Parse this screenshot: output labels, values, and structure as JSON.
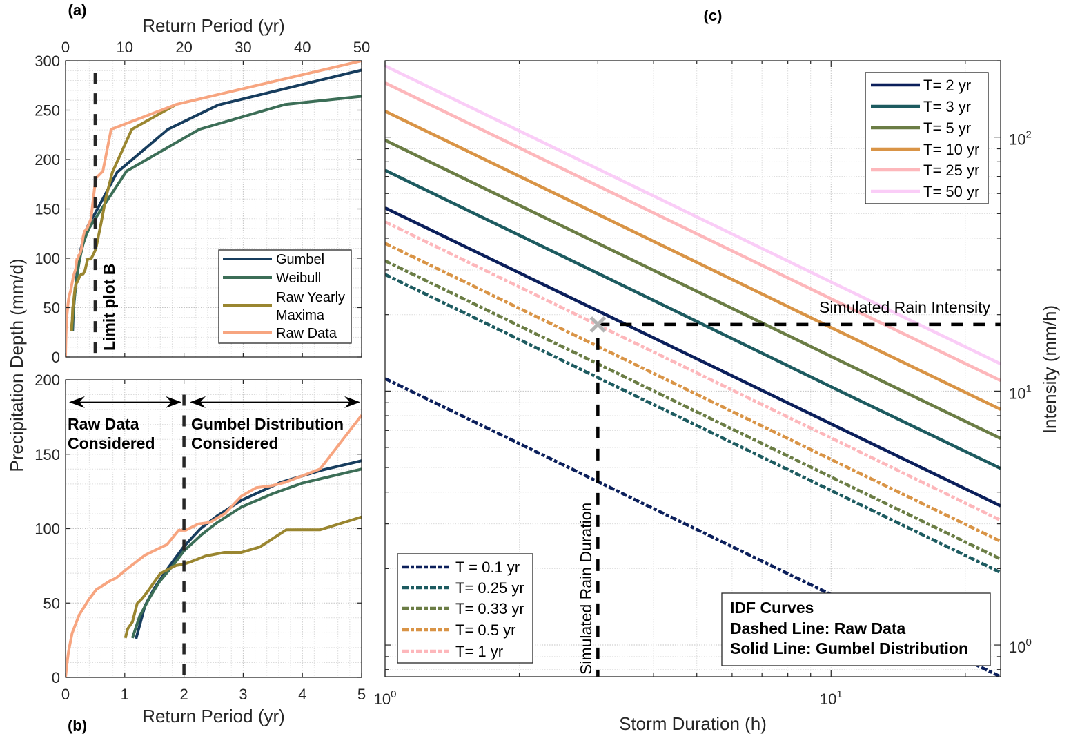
{
  "figure": {
    "panels": [
      "(a)",
      "(b)",
      "(c)"
    ]
  },
  "chart_data": [
    {
      "panel_label": "(a)",
      "type": "line",
      "title": "",
      "xlabel": "Return Period (yr)",
      "ylabel": "Precipitation Depth (mm/d)",
      "x_axis_location": "top",
      "y_axis_location": "left",
      "xscale": "linear",
      "yscale": "linear",
      "xlim": [
        0,
        50
      ],
      "ylim": [
        0,
        300
      ],
      "xticks": [
        0,
        10,
        20,
        30,
        40,
        50
      ],
      "xtick_labels": [
        "0",
        "10",
        "20",
        "30",
        "40",
        "50"
      ],
      "yticks": [
        0,
        50,
        100,
        150,
        200,
        250,
        300
      ],
      "ytick_labels": [
        "0",
        "50",
        "100",
        "150",
        "200",
        "250",
        "300"
      ],
      "minor_step": {
        "x": 2,
        "y": 10
      },
      "grid": {
        "major": true,
        "minor": true
      },
      "legend": {
        "location": "east",
        "entries": [
          [
            "Gumbel"
          ],
          [
            "Weibull"
          ],
          [
            "Raw Yearly",
            "Maxima"
          ],
          [
            "Raw Data"
          ]
        ]
      },
      "series": [
        {
          "name": "Gumbel",
          "color": "#173d5e",
          "style": "solid",
          "x": [
            1.19,
            1.34,
            1.5,
            1.74,
            2.0,
            2.28,
            2.56,
            2.97,
            3.63,
            4.3,
            5.0,
            8.7,
            17.3,
            25.8,
            50
          ],
          "y": [
            26,
            48,
            60,
            74,
            88,
            100,
            108.5,
            119,
            131,
            139,
            145.6,
            187,
            230.6,
            255.3,
            290.6
          ]
        },
        {
          "name": "Weibull",
          "color": "#3c6e57",
          "style": "solid",
          "x": [
            1.13,
            1.25,
            1.42,
            1.58,
            1.83,
            2.0,
            2.3,
            2.56,
            2.97,
            3.5,
            4.0,
            5.0,
            10.3,
            22.6,
            37.1,
            50
          ],
          "y": [
            26.5,
            41,
            53.5,
            64,
            76,
            85,
            96,
            104,
            114.5,
            123.5,
            130.6,
            140,
            188.2,
            230.6,
            255.8,
            264
          ]
        },
        {
          "name": "Raw Yearly Maxima",
          "color": "#9a8630",
          "style": "solid",
          "x": [
            1.01,
            1.05,
            1.13,
            1.21,
            1.29,
            1.38,
            1.46,
            1.6,
            1.74,
            1.87,
            1.99,
            2.11,
            2.36,
            2.68,
            2.97,
            3.28,
            3.73,
            4.3,
            5.0,
            5.2,
            6.0,
            6.8,
            7.9,
            11.2,
            18.7
          ],
          "y": [
            26.5,
            32.7,
            37.3,
            49.7,
            52.8,
            57.4,
            62,
            69.8,
            72.8,
            75.3,
            76,
            77.6,
            81.5,
            84,
            84,
            87.6,
            99.2,
            99.2,
            107.8,
            112,
            135.5,
            161,
            187,
            230.6,
            255.8
          ]
        },
        {
          "name": "Raw Data",
          "color": "#f7a580",
          "style": "solid",
          "x": [
            0,
            0.02,
            0.05,
            0.11,
            0.23,
            0.4,
            0.52,
            0.76,
            0.85,
            1.05,
            1.34,
            1.66,
            1.71,
            1.91,
            2.03,
            2.24,
            2.44,
            2.69,
            2.97,
            3.22,
            3.48,
            3.71,
            4.3,
            5.0,
            5.1,
            6.3,
            7.7,
            18.7,
            50
          ],
          "y": [
            0,
            8,
            17.3,
            29.6,
            42,
            52.8,
            59,
            65.1,
            66.7,
            73.3,
            82.1,
            88.3,
            89.1,
            98.9,
            98.9,
            103.1,
            104.2,
            110.1,
            121.8,
            127.5,
            128.8,
            131.1,
            140.1,
            176.2,
            181,
            188.2,
            230.6,
            255.8,
            300
          ]
        }
      ],
      "annotations": {
        "limit_line": {
          "x": 5,
          "y_max": 288,
          "style": "dashed",
          "color": "#262626",
          "label": "Limit plot B"
        }
      }
    },
    {
      "panel_label": "(b)",
      "type": "line",
      "title": "",
      "xlabel": "Return Period (yr)",
      "ylabel": "Precipitation Depth (mm/d)",
      "x_axis_location": "bottom",
      "y_axis_location": "left",
      "xscale": "linear",
      "yscale": "linear",
      "xlim": [
        0,
        5
      ],
      "ylim": [
        0,
        200
      ],
      "xticks": [
        0,
        1,
        2,
        3,
        4,
        5
      ],
      "xtick_labels": [
        "0",
        "1",
        "2",
        "3",
        "4",
        "5"
      ],
      "yticks": [
        0,
        50,
        100,
        150,
        200
      ],
      "ytick_labels": [
        "0",
        "50",
        "100",
        "150",
        "200"
      ],
      "minor_step": {
        "x": 0.2,
        "y": 10
      },
      "grid": {
        "major": true,
        "minor": true
      },
      "series": [
        {
          "name": "Gumbel",
          "color": "#173d5e",
          "style": "solid",
          "x": [
            1.19,
            1.34,
            1.5,
            1.74,
            2.0,
            2.28,
            2.56,
            2.97,
            3.63,
            4.3,
            5.0
          ],
          "y": [
            26,
            48,
            60,
            74,
            88,
            100,
            108.5,
            119,
            131,
            139,
            145.6
          ]
        },
        {
          "name": "Weibull",
          "color": "#3c6e57",
          "style": "solid",
          "x": [
            1.13,
            1.25,
            1.42,
            1.58,
            1.83,
            2.0,
            2.3,
            2.56,
            2.97,
            3.5,
            4.0,
            5.0
          ],
          "y": [
            26.5,
            41,
            53.5,
            64,
            76,
            85,
            96,
            104,
            114.5,
            123.5,
            130.6,
            140
          ]
        },
        {
          "name": "Raw Yearly Maxima",
          "color": "#9a8630",
          "style": "solid",
          "x": [
            1.01,
            1.05,
            1.13,
            1.21,
            1.29,
            1.38,
            1.46,
            1.6,
            1.74,
            1.87,
            1.99,
            2.11,
            2.36,
            2.68,
            2.97,
            3.28,
            3.73,
            4.3,
            5.0
          ],
          "y": [
            26.5,
            32.7,
            37.3,
            49.7,
            52.8,
            57.4,
            62,
            69.8,
            72.8,
            75.3,
            76,
            77.6,
            81.5,
            84,
            84,
            87.6,
            99.2,
            99.2,
            107.8
          ]
        },
        {
          "name": "Raw Data",
          "color": "#f7a580",
          "style": "solid",
          "x": [
            0,
            0.02,
            0.05,
            0.11,
            0.23,
            0.4,
            0.52,
            0.76,
            0.85,
            1.05,
            1.34,
            1.66,
            1.71,
            1.91,
            2.03,
            2.24,
            2.44,
            2.69,
            2.97,
            3.22,
            3.48,
            3.71,
            4.3,
            5.0
          ],
          "y": [
            0,
            8,
            17.3,
            29.6,
            42,
            52.8,
            59,
            65.1,
            66.7,
            73.3,
            82.1,
            88.3,
            89.1,
            98.9,
            98.9,
            103.1,
            104.2,
            110.1,
            121.8,
            127.5,
            128.8,
            131.1,
            140.1,
            176.2
          ]
        }
      ],
      "annotations": {
        "threshold_line": {
          "x": 2,
          "y_max": 190,
          "style": "dashed",
          "color": "#262626"
        },
        "regions": [
          {
            "x_range": [
              0,
              2
            ],
            "arrow_y": 185,
            "lines": [
              "Raw Data",
              "Considered"
            ]
          },
          {
            "x_range": [
              2,
              5
            ],
            "arrow_y": 185,
            "lines": [
              "Gumbel Distribution",
              "Considered"
            ]
          }
        ]
      }
    },
    {
      "panel_label": "(c)",
      "type": "line",
      "title": "",
      "xlabel": "Storm Duration (h)",
      "ylabel": "Intensity (mm/h)",
      "x_axis_location": "bottom",
      "y_axis_location": "right",
      "xscale": "log",
      "yscale": "log",
      "xlim": [
        1,
        24
      ],
      "ylim": [
        0.75,
        200
      ],
      "xticks": [
        1,
        10
      ],
      "xtick_labels": [
        {
          "base": "10",
          "exp": "0"
        },
        {
          "base": "10",
          "exp": "1"
        }
      ],
      "yticks": [
        1,
        10,
        100
      ],
      "ytick_labels": [
        {
          "base": "10",
          "exp": "0"
        },
        {
          "base": "10",
          "exp": "1"
        },
        {
          "base": "10",
          "exp": "2"
        }
      ],
      "grid": {
        "major": true,
        "minor": true
      },
      "legends": [
        {
          "location": "northeast",
          "style": "solid",
          "series_indices": [
            0,
            1,
            2,
            3,
            4,
            5
          ]
        },
        {
          "location": "southwest",
          "style": "dashdot",
          "series_indices": [
            6,
            7,
            8,
            9,
            10
          ]
        }
      ],
      "textbox": {
        "location": "southeast",
        "lines": [
          "IDF Curves",
          "Dashed Line: Raw Data",
          "Solid Line: Gumbel Distribution"
        ]
      },
      "series": [
        {
          "name": "T= 2 yr",
          "return_period_yr": 2,
          "source": "Gumbel Distribution",
          "style": "solid",
          "color": "#0b1f5b",
          "x": [
            1,
            3,
            10,
            24
          ],
          "y": [
            52.7,
            20.7,
            7.43,
            3.53
          ]
        },
        {
          "name": "T= 3 yr",
          "return_period_yr": 3,
          "source": "Gumbel Distribution",
          "style": "solid",
          "color": "#1d5b60",
          "x": [
            1,
            3,
            10,
            24
          ],
          "y": [
            74.1,
            29.1,
            10.4,
            4.96
          ]
        },
        {
          "name": "T= 5 yr",
          "return_period_yr": 5,
          "source": "Gumbel Distribution",
          "style": "solid",
          "color": "#6b7d45",
          "x": [
            1,
            3,
            10,
            24
          ],
          "y": [
            97.3,
            38.2,
            13.7,
            6.51
          ]
        },
        {
          "name": "T= 10 yr",
          "return_period_yr": 10,
          "source": "Gumbel Distribution",
          "style": "solid",
          "color": "#d99446",
          "x": [
            1,
            3,
            10,
            24
          ],
          "y": [
            126.6,
            49.7,
            17.8,
            8.47
          ]
        },
        {
          "name": "T= 25 yr",
          "return_period_yr": 25,
          "source": "Gumbel Distribution",
          "style": "solid",
          "color": "#fdb7bb",
          "x": [
            1,
            3,
            10,
            24
          ],
          "y": [
            163.7,
            64.3,
            23.1,
            11.0
          ]
        },
        {
          "name": "T= 50 yr",
          "return_period_yr": 50,
          "source": "Gumbel Distribution",
          "style": "solid",
          "color": "#facdf7",
          "x": [
            1,
            3,
            10,
            24
          ],
          "y": [
            191.0,
            75.0,
            26.9,
            12.8
          ]
        },
        {
          "name": "T = 0.1 yr",
          "return_period_yr": 0.1,
          "source": "Raw Data",
          "style": "dashdot",
          "color": "#0b1f5b",
          "x": [
            1,
            3,
            10,
            24
          ],
          "y": [
            11.2,
            4.4,
            1.58,
            0.75
          ]
        },
        {
          "name": "T= 0.25 yr",
          "return_period_yr": 0.25,
          "source": "Raw Data",
          "style": "dashdot",
          "color": "#1d5b60",
          "x": [
            1,
            3,
            10,
            24
          ],
          "y": [
            28.8,
            11.3,
            4.06,
            1.93
          ]
        },
        {
          "name": "T= 0.33 yr",
          "return_period_yr": 0.33,
          "source": "Raw Data",
          "style": "dashdot",
          "color": "#6b7d45",
          "x": [
            1,
            3,
            10,
            24
          ],
          "y": [
            32.6,
            12.8,
            4.59,
            2.18
          ]
        },
        {
          "name": "T= 0.5 yr",
          "return_period_yr": 0.5,
          "source": "Raw Data",
          "style": "dashdot",
          "color": "#d99446",
          "x": [
            1,
            3,
            10,
            24
          ],
          "y": [
            38.2,
            15.0,
            5.38,
            2.56
          ]
        },
        {
          "name": "T= 1 yr",
          "return_period_yr": 1,
          "source": "Raw Data",
          "style": "dashdot",
          "color": "#fdb7bb",
          "x": [
            1,
            3,
            10,
            24
          ],
          "y": [
            46.4,
            18.2,
            6.54,
            3.1
          ]
        }
      ],
      "annotations": {
        "simulated_point": {
          "duration_h": 3,
          "intensity_mm_per_h": 18.3,
          "marker": "x",
          "color": "#b3b3b3",
          "on_curve": "T= 1 yr"
        },
        "intensity_line": {
          "label": "Simulated Rain Intensity",
          "style": "dashed",
          "color": "#000000"
        },
        "duration_line": {
          "label": "Simulated Rain Duration",
          "style": "dashed",
          "color": "#000000"
        }
      }
    }
  ]
}
